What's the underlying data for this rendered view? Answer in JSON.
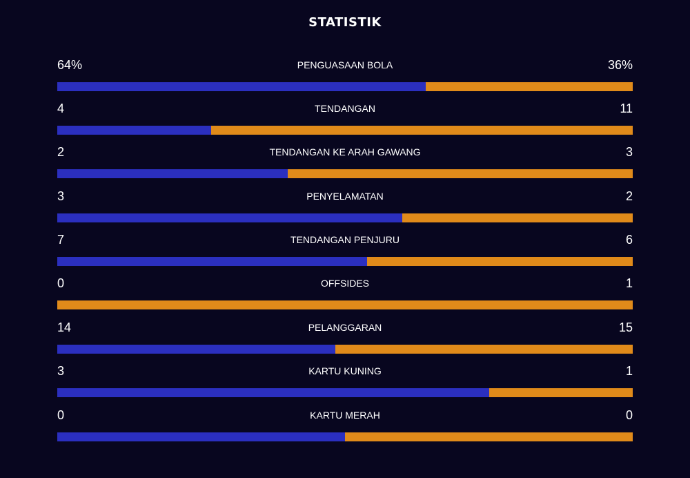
{
  "title": "STATISTIK",
  "colors": {
    "home": "#2b2fbf",
    "away": "#e08a1a",
    "background": "#08061f"
  },
  "stats": [
    {
      "label": "PENGUASAAN BOLA",
      "home": "64%",
      "away": "36%",
      "home_share": 0.64
    },
    {
      "label": "TENDANGAN",
      "home": "4",
      "away": "11",
      "home_share": 0.267
    },
    {
      "label": "TENDANGAN KE ARAH GAWANG",
      "home": "2",
      "away": "3",
      "home_share": 0.4
    },
    {
      "label": "PENYELAMATAN",
      "home": "3",
      "away": "2",
      "home_share": 0.6
    },
    {
      "label": "TENDANGAN PENJURU",
      "home": "7",
      "away": "6",
      "home_share": 0.538
    },
    {
      "label": "OFFSIDES",
      "home": "0",
      "away": "1",
      "home_share": 0.0
    },
    {
      "label": "PELANGGARAN",
      "home": "14",
      "away": "15",
      "home_share": 0.483
    },
    {
      "label": "KARTU KUNING",
      "home": "3",
      "away": "1",
      "home_share": 0.75
    },
    {
      "label": "KARTU MERAH",
      "home": "0",
      "away": "0",
      "home_share": 0.5
    }
  ]
}
